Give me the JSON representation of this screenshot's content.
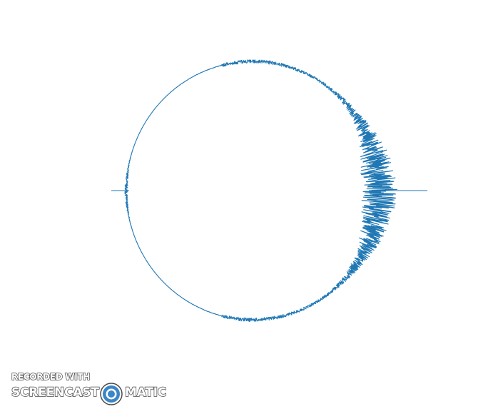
{
  "visualization": {
    "stroke_color": "#1f77b4",
    "background_color": "#ffffff"
  },
  "watermark": {
    "line1": "RECORDED WITH",
    "brand_left": "SCREENCAST",
    "brand_right": "MATIC",
    "logo_icon": "screencast-o-matic-logo-icon",
    "logo_color": "#3b86c6"
  }
}
